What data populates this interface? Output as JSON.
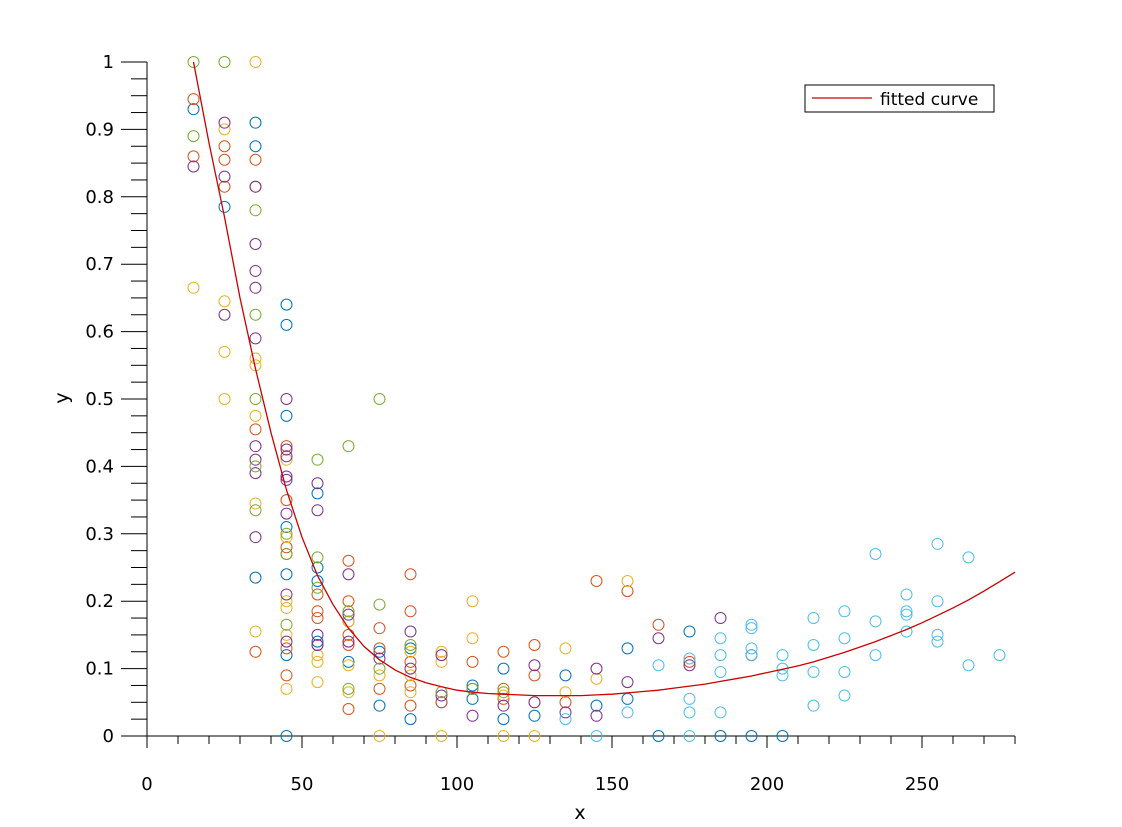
{
  "chart_data": {
    "type": "scatter",
    "title": "",
    "xlabel": "x",
    "ylabel": "y",
    "xlim": [
      0,
      280
    ],
    "ylim": [
      0,
      1
    ],
    "x_ticks": [
      0,
      50,
      100,
      150,
      200,
      250
    ],
    "y_ticks": [
      0,
      0.1,
      0.2,
      0.3,
      0.4,
      0.5,
      0.6,
      0.7,
      0.8,
      0.9,
      1
    ],
    "grid": false,
    "legend": {
      "placement": "top-right",
      "entries": [
        "fitted curve"
      ]
    },
    "curve": {
      "name": "fitted curve",
      "color": "#cc0000",
      "x": [
        15,
        20,
        25,
        30,
        35,
        40,
        45,
        50,
        55,
        60,
        65,
        70,
        75,
        80,
        85,
        90,
        95,
        100,
        105,
        110,
        115,
        120,
        125,
        130,
        135,
        140,
        145,
        150,
        155,
        160,
        165,
        170,
        175,
        180,
        185,
        190,
        195,
        200,
        205,
        210,
        215,
        220,
        225,
        230,
        235,
        240,
        245,
        250,
        255,
        260,
        265,
        270,
        275,
        280
      ],
      "y": [
        1.0,
        0.88,
        0.77,
        0.65,
        0.545,
        0.45,
        0.365,
        0.295,
        0.238,
        0.195,
        0.16,
        0.133,
        0.113,
        0.098,
        0.087,
        0.079,
        0.073,
        0.068,
        0.065,
        0.063,
        0.062,
        0.061,
        0.06,
        0.06,
        0.06,
        0.06,
        0.061,
        0.062,
        0.064,
        0.066,
        0.068,
        0.071,
        0.074,
        0.077,
        0.081,
        0.085,
        0.089,
        0.094,
        0.099,
        0.104,
        0.11,
        0.117,
        0.124,
        0.132,
        0.14,
        0.149,
        0.158,
        0.168,
        0.179,
        0.19,
        0.202,
        0.215,
        0.229,
        0.243
      ]
    },
    "series": [
      {
        "color": "#0072bd",
        "points": [
          [
            15,
            0.93
          ],
          [
            25,
            0.785
          ],
          [
            35,
            0.91
          ],
          [
            35,
            0.875
          ],
          [
            35,
            0.235
          ],
          [
            45,
            0.64
          ],
          [
            45,
            0.61
          ],
          [
            45,
            0.475
          ],
          [
            45,
            0.31
          ],
          [
            45,
            0.24
          ],
          [
            45,
            0.12
          ],
          [
            45,
            0.0
          ],
          [
            55,
            0.36
          ],
          [
            55,
            0.25
          ],
          [
            55,
            0.23
          ],
          [
            55,
            0.14
          ],
          [
            65,
            0.17
          ],
          [
            65,
            0.11
          ],
          [
            75,
            0.125
          ],
          [
            75,
            0.045
          ],
          [
            85,
            0.13
          ],
          [
            85,
            0.025
          ],
          [
            95,
            0.05
          ],
          [
            105,
            0.075
          ],
          [
            105,
            0.055
          ],
          [
            115,
            0.1
          ],
          [
            115,
            0.025
          ],
          [
            125,
            0.03
          ],
          [
            135,
            0.09
          ],
          [
            145,
            0.045
          ],
          [
            155,
            0.13
          ],
          [
            155,
            0.055
          ],
          [
            165,
            0.0
          ],
          [
            175,
            0.155
          ],
          [
            185,
            0.0
          ],
          [
            195,
            0.0
          ],
          [
            205,
            0.0
          ]
        ]
      },
      {
        "color": "#d95319",
        "points": [
          [
            15,
            0.945
          ],
          [
            15,
            0.86
          ],
          [
            25,
            0.875
          ],
          [
            25,
            0.855
          ],
          [
            25,
            0.815
          ],
          [
            35,
            0.855
          ],
          [
            35,
            0.815
          ],
          [
            35,
            0.455
          ],
          [
            35,
            0.125
          ],
          [
            45,
            0.43
          ],
          [
            45,
            0.35
          ],
          [
            45,
            0.28
          ],
          [
            45,
            0.27
          ],
          [
            45,
            0.13
          ],
          [
            45,
            0.09
          ],
          [
            55,
            0.21
          ],
          [
            55,
            0.185
          ],
          [
            55,
            0.175
          ],
          [
            55,
            0.135
          ],
          [
            65,
            0.26
          ],
          [
            65,
            0.2
          ],
          [
            65,
            0.15
          ],
          [
            65,
            0.135
          ],
          [
            65,
            0.04
          ],
          [
            75,
            0.16
          ],
          [
            75,
            0.13
          ],
          [
            75,
            0.07
          ],
          [
            85,
            0.24
          ],
          [
            85,
            0.185
          ],
          [
            85,
            0.11
          ],
          [
            85,
            0.075
          ],
          [
            85,
            0.045
          ],
          [
            95,
            0.05
          ],
          [
            105,
            0.11
          ],
          [
            115,
            0.125
          ],
          [
            115,
            0.07
          ],
          [
            115,
            0.055
          ],
          [
            125,
            0.135
          ],
          [
            125,
            0.09
          ],
          [
            135,
            0.05
          ],
          [
            145,
            0.23
          ],
          [
            155,
            0.215
          ],
          [
            165,
            0.165
          ],
          [
            175,
            0.11
          ]
        ]
      },
      {
        "color": "#edb120",
        "points": [
          [
            15,
            0.665
          ],
          [
            25,
            0.9
          ],
          [
            25,
            0.645
          ],
          [
            25,
            0.57
          ],
          [
            25,
            0.5
          ],
          [
            35,
            1.0
          ],
          [
            35,
            0.56
          ],
          [
            35,
            0.55
          ],
          [
            35,
            0.475
          ],
          [
            35,
            0.345
          ],
          [
            35,
            0.155
          ],
          [
            45,
            0.41
          ],
          [
            45,
            0.295
          ],
          [
            45,
            0.2
          ],
          [
            45,
            0.19
          ],
          [
            45,
            0.15
          ],
          [
            45,
            0.07
          ],
          [
            55,
            0.12
          ],
          [
            55,
            0.11
          ],
          [
            55,
            0.08
          ],
          [
            65,
            0.185
          ],
          [
            65,
            0.17
          ],
          [
            65,
            0.105
          ],
          [
            65,
            0.065
          ],
          [
            75,
            0.09
          ],
          [
            75,
            0.0
          ],
          [
            85,
            0.125
          ],
          [
            85,
            0.09
          ],
          [
            85,
            0.065
          ],
          [
            95,
            0.125
          ],
          [
            95,
            0.11
          ],
          [
            95,
            0.0
          ],
          [
            105,
            0.2
          ],
          [
            105,
            0.145
          ],
          [
            115,
            0.06
          ],
          [
            115,
            0.0
          ],
          [
            125,
            0.05
          ],
          [
            125,
            0.0
          ],
          [
            135,
            0.13
          ],
          [
            135,
            0.065
          ],
          [
            145,
            0.085
          ],
          [
            155,
            0.23
          ]
        ]
      },
      {
        "color": "#7e2f8e",
        "points": [
          [
            15,
            0.845
          ],
          [
            25,
            0.91
          ],
          [
            25,
            0.83
          ],
          [
            25,
            0.625
          ],
          [
            35,
            0.815
          ],
          [
            35,
            0.73
          ],
          [
            35,
            0.69
          ],
          [
            35,
            0.665
          ],
          [
            35,
            0.59
          ],
          [
            35,
            0.43
          ],
          [
            35,
            0.41
          ],
          [
            35,
            0.39
          ],
          [
            35,
            0.295
          ],
          [
            45,
            0.5
          ],
          [
            45,
            0.425
          ],
          [
            45,
            0.415
          ],
          [
            45,
            0.385
          ],
          [
            45,
            0.38
          ],
          [
            45,
            0.33
          ],
          [
            45,
            0.21
          ],
          [
            45,
            0.14
          ],
          [
            55,
            0.375
          ],
          [
            55,
            0.335
          ],
          [
            55,
            0.15
          ],
          [
            55,
            0.135
          ],
          [
            65,
            0.24
          ],
          [
            65,
            0.18
          ],
          [
            65,
            0.14
          ],
          [
            75,
            0.115
          ],
          [
            85,
            0.155
          ],
          [
            85,
            0.1
          ],
          [
            95,
            0.12
          ],
          [
            95,
            0.06
          ],
          [
            105,
            0.07
          ],
          [
            105,
            0.03
          ],
          [
            115,
            0.045
          ],
          [
            125,
            0.105
          ],
          [
            125,
            0.05
          ],
          [
            135,
            0.035
          ],
          [
            145,
            0.1
          ],
          [
            145,
            0.03
          ],
          [
            155,
            0.08
          ],
          [
            165,
            0.145
          ],
          [
            175,
            0.105
          ],
          [
            185,
            0.175
          ],
          [
            195,
            0.12
          ]
        ]
      },
      {
        "color": "#77ac30",
        "points": [
          [
            15,
            1.0
          ],
          [
            15,
            0.89
          ],
          [
            25,
            1.0
          ],
          [
            35,
            0.78
          ],
          [
            35,
            0.625
          ],
          [
            35,
            0.5
          ],
          [
            35,
            0.4
          ],
          [
            35,
            0.335
          ],
          [
            45,
            0.3
          ],
          [
            45,
            0.27
          ],
          [
            45,
            0.165
          ],
          [
            55,
            0.41
          ],
          [
            55,
            0.265
          ],
          [
            55,
            0.22
          ],
          [
            65,
            0.43
          ],
          [
            65,
            0.185
          ],
          [
            65,
            0.07
          ],
          [
            75,
            0.5
          ],
          [
            75,
            0.195
          ],
          [
            75,
            0.1
          ],
          [
            85,
            0.135
          ],
          [
            95,
            0.065
          ],
          [
            105,
            0.07
          ],
          [
            115,
            0.065
          ]
        ]
      },
      {
        "color": "#4dbeee",
        "points": [
          [
            135,
            0.025
          ],
          [
            145,
            0.0
          ],
          [
            155,
            0.035
          ],
          [
            165,
            0.105
          ],
          [
            175,
            0.115
          ],
          [
            175,
            0.055
          ],
          [
            175,
            0.035
          ],
          [
            175,
            0.0
          ],
          [
            185,
            0.145
          ],
          [
            185,
            0.12
          ],
          [
            185,
            0.095
          ],
          [
            185,
            0.035
          ],
          [
            195,
            0.165
          ],
          [
            195,
            0.16
          ],
          [
            195,
            0.13
          ],
          [
            195,
            0.12
          ],
          [
            205,
            0.12
          ],
          [
            205,
            0.1
          ],
          [
            205,
            0.09
          ],
          [
            215,
            0.175
          ],
          [
            215,
            0.135
          ],
          [
            215,
            0.095
          ],
          [
            215,
            0.045
          ],
          [
            225,
            0.185
          ],
          [
            225,
            0.145
          ],
          [
            225,
            0.095
          ],
          [
            225,
            0.06
          ],
          [
            235,
            0.27
          ],
          [
            235,
            0.17
          ],
          [
            235,
            0.12
          ],
          [
            245,
            0.21
          ],
          [
            245,
            0.185
          ],
          [
            245,
            0.18
          ],
          [
            245,
            0.155
          ],
          [
            255,
            0.285
          ],
          [
            255,
            0.2
          ],
          [
            255,
            0.15
          ],
          [
            255,
            0.14
          ],
          [
            265,
            0.265
          ],
          [
            265,
            0.105
          ],
          [
            275,
            0.12
          ]
        ]
      }
    ]
  }
}
